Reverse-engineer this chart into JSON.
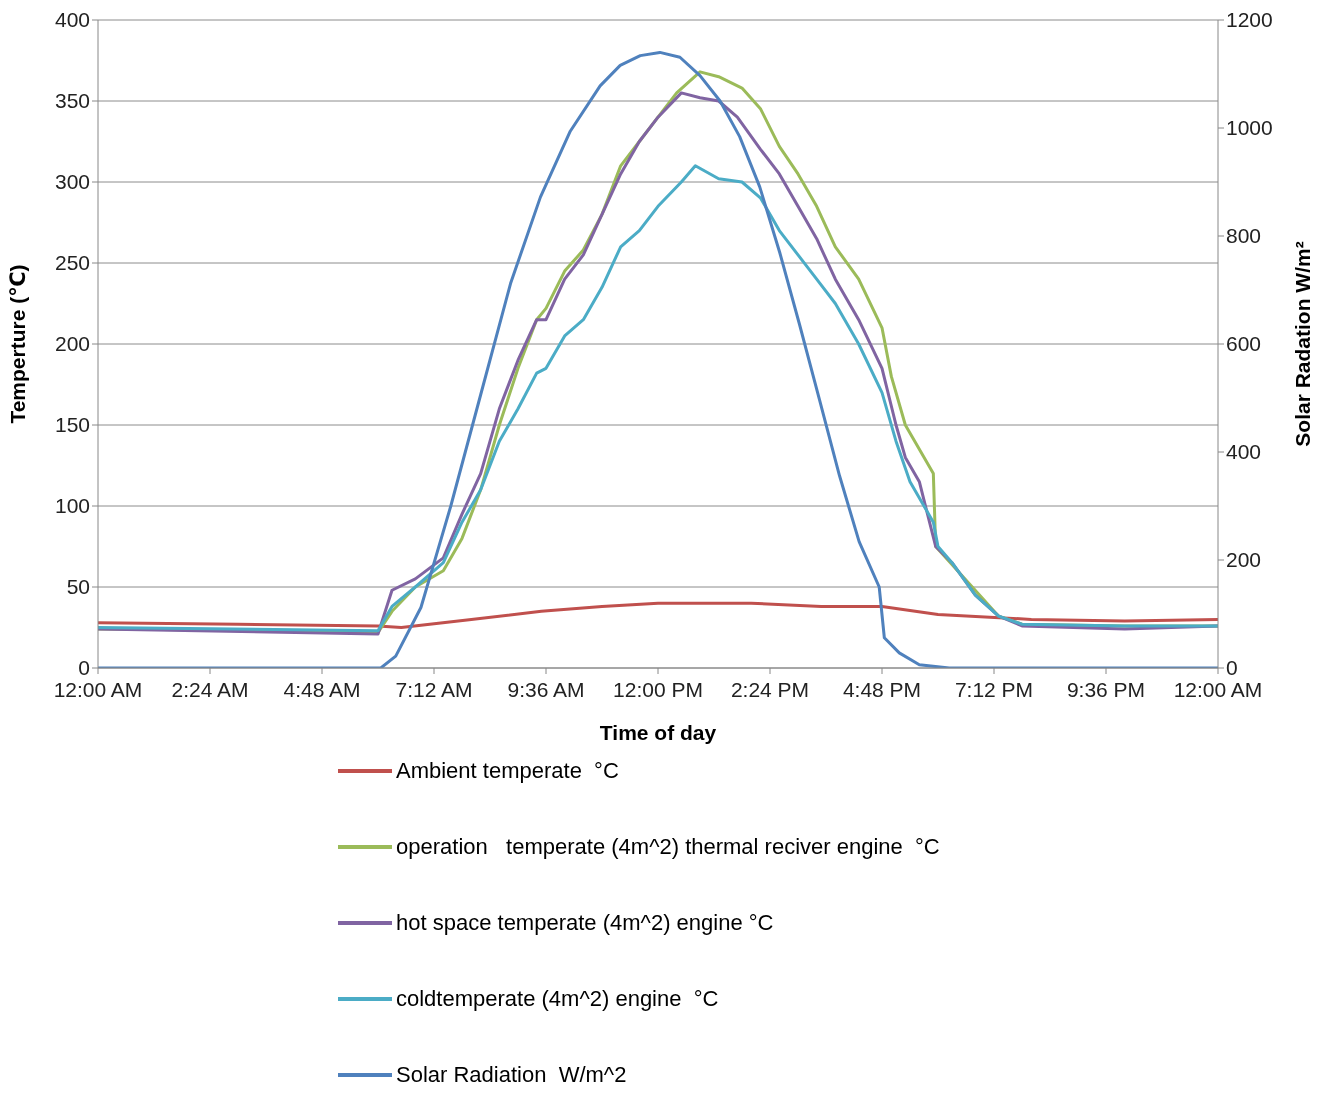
{
  "chart_data": {
    "type": "line",
    "xlabel": "Time of day",
    "ylabel": "Temperture (℃)",
    "y2label": "Solar Radation W/m²",
    "xlim": [
      0,
      24
    ],
    "xticks": [
      {
        "value": 0,
        "label": "12:00 AM"
      },
      {
        "value": 2.4,
        "label": "2:24 AM"
      },
      {
        "value": 4.8,
        "label": "4:48 AM"
      },
      {
        "value": 7.2,
        "label": "7:12 AM"
      },
      {
        "value": 9.6,
        "label": "9:36 AM"
      },
      {
        "value": 12,
        "label": "12:00 PM"
      },
      {
        "value": 14.4,
        "label": "2:24 PM"
      },
      {
        "value": 16.8,
        "label": "4:48 PM"
      },
      {
        "value": 19.2,
        "label": "7:12 PM"
      },
      {
        "value": 21.6,
        "label": "9:36 PM"
      },
      {
        "value": 24,
        "label": "12:00 AM"
      }
    ],
    "ylim": [
      0,
      400
    ],
    "yticks": [
      0,
      50,
      100,
      150,
      200,
      250,
      300,
      350,
      400
    ],
    "y2lim": [
      0,
      1200
    ],
    "y2ticks": [
      0,
      200,
      400,
      600,
      800,
      1000,
      1200
    ],
    "grid": "y",
    "legend": "bottom",
    "marker": "none",
    "line_style": "solid",
    "series": [
      {
        "name": "Ambient temperate  °C",
        "color": "#c0504d",
        "x": [
          0,
          3,
          6,
          6.5,
          8,
          9.5,
          10.8,
          12,
          14,
          15.5,
          16.8,
          18,
          20,
          22,
          24
        ],
        "values": [
          28,
          27,
          26,
          25,
          30,
          35,
          38,
          40,
          40,
          38,
          38,
          33,
          30,
          29,
          30
        ]
      },
      {
        "name": "operation   temperate (4m^2) thermal reciver engine  °C",
        "color": "#9bbb59",
        "x": [
          0,
          5,
          6,
          6.3,
          6.8,
          7.4,
          7.8,
          8.2,
          8.6,
          9,
          9.4,
          9.6,
          10,
          10.4,
          10.8,
          11.2,
          11.6,
          12,
          12.4,
          12.9,
          13.3,
          13.8,
          14.2,
          14.6,
          15,
          15.4,
          15.8,
          16.3,
          16.8,
          17,
          17.3,
          17.6,
          17.9,
          17.95,
          19.3,
          19.8,
          22,
          24
        ],
        "values": [
          24,
          23,
          22,
          35,
          50,
          60,
          80,
          110,
          150,
          185,
          215,
          222,
          245,
          258,
          280,
          310,
          325,
          340,
          355,
          368,
          365,
          358,
          345,
          322,
          305,
          285,
          260,
          240,
          210,
          180,
          150,
          135,
          120,
          75,
          32,
          27,
          26,
          26
        ]
      },
      {
        "name": "hot space temperate (4m^2) engine °C",
        "color": "#8064a2",
        "x": [
          0,
          6,
          6.3,
          6.8,
          7.4,
          7.8,
          8.2,
          8.6,
          9,
          9.4,
          9.6,
          10,
          10.4,
          10.8,
          11.2,
          11.6,
          12,
          12.5,
          12.9,
          13.3,
          13.7,
          14.2,
          14.6,
          15,
          15.4,
          15.8,
          16.3,
          16.8,
          17.1,
          17.3,
          17.6,
          17.95,
          18.3,
          18.8,
          19.3,
          19.8,
          22,
          24
        ],
        "values": [
          24,
          21,
          48,
          55,
          68,
          95,
          120,
          160,
          190,
          215,
          215,
          240,
          255,
          280,
          305,
          325,
          340,
          355,
          352,
          350,
          340,
          320,
          305,
          285,
          265,
          240,
          215,
          185,
          150,
          130,
          115,
          75,
          65,
          45,
          32,
          26,
          24,
          26
        ]
      },
      {
        "name": "coldtemperate (4m^2) engine  °C",
        "color": "#4bacc6",
        "x": [
          0,
          6,
          6.3,
          6.8,
          7.4,
          7.8,
          8.2,
          8.6,
          9,
          9.4,
          9.6,
          10,
          10.4,
          10.8,
          11.2,
          11.6,
          12,
          12.5,
          12.8,
          13.3,
          13.8,
          14.2,
          14.6,
          15,
          15.4,
          15.8,
          16.3,
          16.8,
          17.1,
          17.4,
          17.9,
          18,
          18.3,
          18.8,
          19.3,
          19.8,
          22,
          24
        ],
        "values": [
          25,
          23,
          38,
          50,
          65,
          90,
          110,
          140,
          160,
          182,
          185,
          205,
          215,
          235,
          260,
          270,
          285,
          300,
          310,
          302,
          300,
          290,
          270,
          255,
          240,
          225,
          200,
          170,
          140,
          115,
          90,
          75,
          65,
          45,
          32,
          27,
          26,
          26
        ]
      },
      {
        "name": "Solar Radiation  W/m^2",
        "color": "#4f81bd",
        "axis": "y2",
        "x": [
          0,
          6.06,
          6.38,
          6.92,
          7.56,
          8.2,
          8.84,
          9.48,
          10.12,
          10.76,
          11.19,
          11.62,
          12.04,
          12.47,
          12.9,
          13.33,
          13.75,
          14.18,
          14.61,
          15.03,
          15.46,
          15.89,
          16.31,
          16.74,
          16.85,
          17.17,
          17.6,
          18.24,
          24
        ],
        "values": [
          0,
          0,
          22,
          112,
          300,
          506,
          712,
          872,
          994,
          1078,
          1116,
          1134,
          1140,
          1131,
          1097,
          1050,
          984,
          891,
          769,
          637,
          497,
          356,
          234,
          150,
          56,
          28,
          6,
          0,
          0
        ]
      }
    ]
  }
}
